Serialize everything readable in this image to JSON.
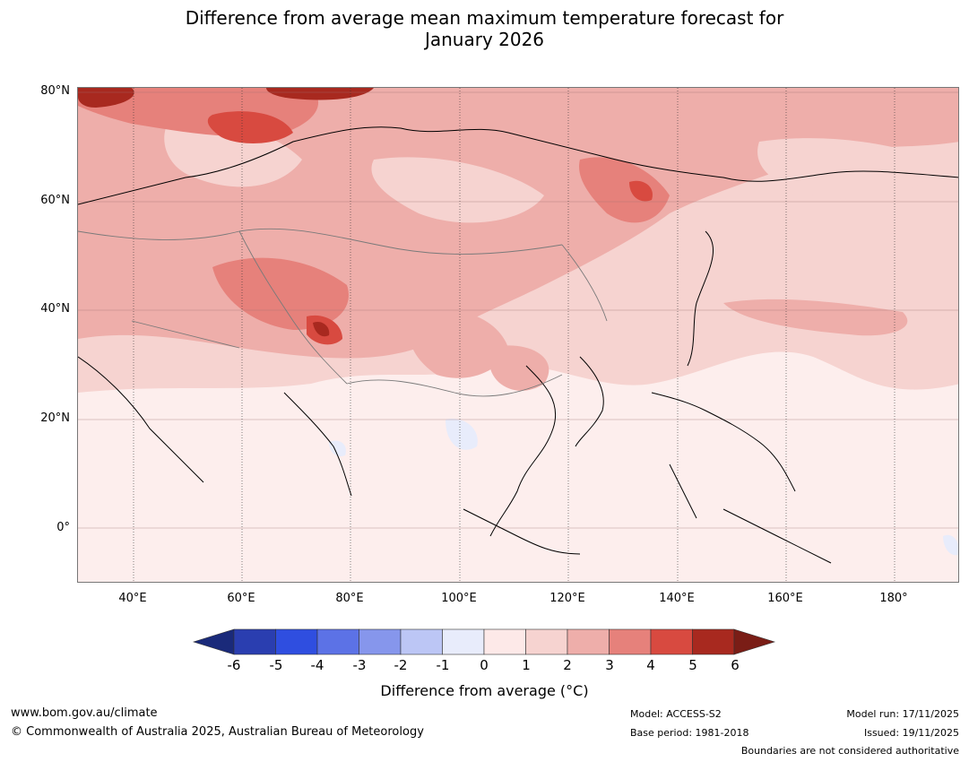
{
  "title_line1": "Difference from average mean maximum temperature forecast for",
  "title_line2": "January 2026",
  "map": {
    "lat_labels": [
      "80°N",
      "60°N",
      "40°N",
      "20°N",
      "0°"
    ],
    "lon_labels": [
      "40°E",
      "60°E",
      "80°E",
      "100°E",
      "120°E",
      "140°E",
      "160°E",
      "180°"
    ]
  },
  "colorbar": {
    "ticks": [
      "-6",
      "-5",
      "-4",
      "-3",
      "-2",
      "-1",
      "0",
      "1",
      "2",
      "3",
      "4",
      "5",
      "6"
    ],
    "colors": [
      "#1a2a7a",
      "#2a3eb0",
      "#2f4ee0",
      "#5c72e6",
      "#8696ec",
      "#bcc6f5",
      "#e8ecfb",
      "#fde9e8",
      "#f6d3d0",
      "#eeaeaa",
      "#e6817b",
      "#d84a40",
      "#a8291f",
      "#7a1d16"
    ],
    "label": "Difference from average (°C)"
  },
  "footer": {
    "website": "www.bom.gov.au/climate",
    "copyright": "© Commonwealth of Australia 2025, Australian Bureau of Meteorology",
    "model": "Model: ACCESS-S2",
    "base_period": "Base period: 1981-2018",
    "model_run": "Model run: 17/11/2025",
    "issued": "Issued: 19/11/2025",
    "disclaimer": "Boundaries are not considered authoritative"
  }
}
